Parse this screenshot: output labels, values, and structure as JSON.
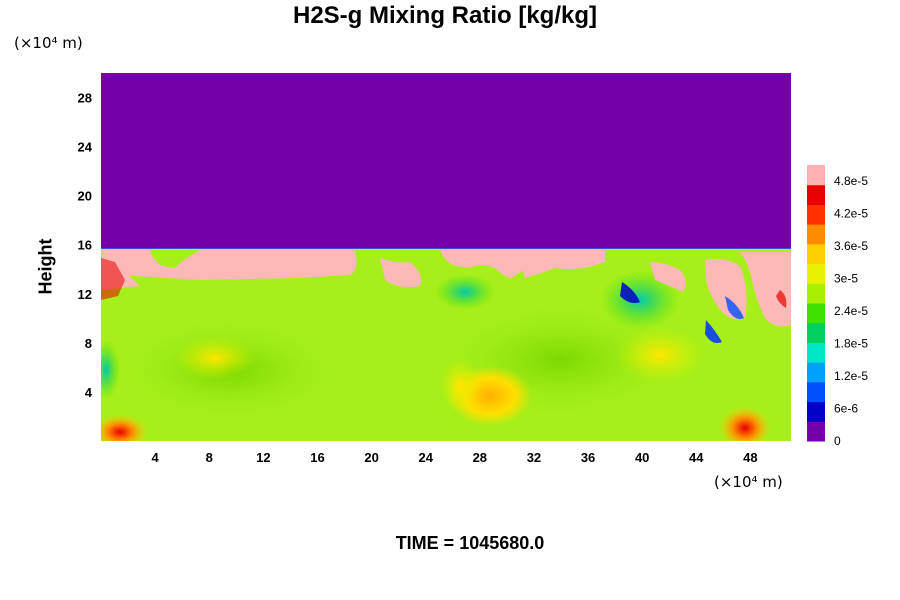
{
  "chart_data": {
    "type": "heatmap",
    "title": "H2S-g Mixing Ratio [kg/kg]",
    "ylabel": "Height",
    "xlabel": "",
    "x_unit_label": "(×10⁴ m)",
    "y_unit_label": "(×10⁴ m)",
    "x_ticks": [
      4,
      8,
      12,
      16,
      20,
      24,
      28,
      32,
      36,
      40,
      44,
      48
    ],
    "y_ticks": [
      4,
      8,
      12,
      16,
      20,
      24,
      28
    ],
    "xlim": [
      0,
      51
    ],
    "ylim": [
      0,
      30
    ],
    "colorbar": {
      "min": 0,
      "max": 5.1e-05,
      "tick_labels": [
        "0",
        "6e-6",
        "1.2e-5",
        "1.8e-5",
        "2.4e-5",
        "3e-5",
        "3.6e-5",
        "4.2e-5",
        "4.8e-5"
      ],
      "tick_values": [
        0,
        6e-06,
        1.2e-05,
        1.8e-05,
        2.4e-05,
        3e-05,
        3.6e-05,
        4.2e-05,
        4.8e-05
      ],
      "colors": [
        "#7300a8",
        "#0000c8",
        "#0050ff",
        "#00a0ff",
        "#00e6c8",
        "#00d060",
        "#40e000",
        "#a8f000",
        "#e6f000",
        "#ffd000",
        "#ff8c00",
        "#ff3000",
        "#e80000",
        "#ffb0b0"
      ]
    },
    "regions": {
      "upper_layer_value": 0,
      "cloud_top_height": 15.5,
      "bulk_value": 3.1e-05,
      "cloud_top_value": 5e-05
    },
    "time_label": "TIME = 1045680.0"
  },
  "colors": {
    "upper": "#7300a8",
    "bulk": "#a6ef1a",
    "top_band": "#ffb8b8"
  }
}
